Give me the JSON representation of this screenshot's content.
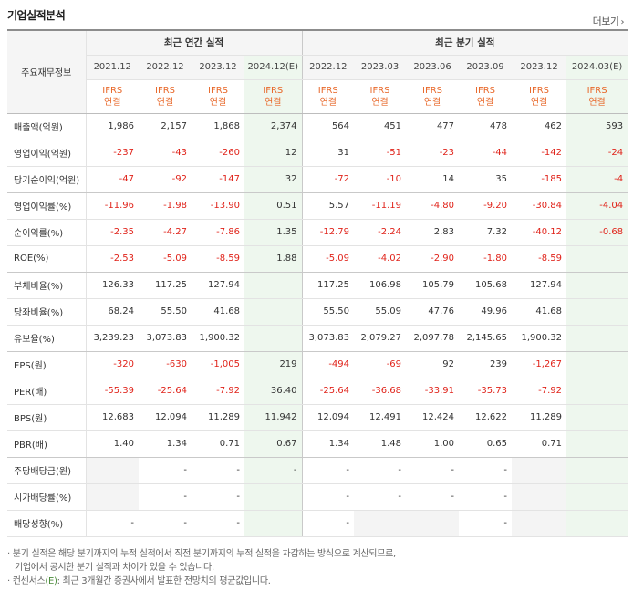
{
  "title": "기업실적분석",
  "more_label": "더보기",
  "header": {
    "label_col": "주요재무정보",
    "annual_group": "최근 연간 실적",
    "quarter_group": "최근 분기 실적",
    "annual_periods": [
      "2021.12",
      "2022.12",
      "2023.12",
      "2024.12(E)"
    ],
    "quarter_periods": [
      "2022.12",
      "2023.03",
      "2023.06",
      "2023.09",
      "2023.12",
      "2024.03(E)"
    ],
    "standard_top": "IFRS",
    "standard_bottom": "연결"
  },
  "rows": [
    {
      "label": "매출액(억원)",
      "values": [
        "1,986",
        "2,157",
        "1,868",
        "2,374",
        "564",
        "451",
        "477",
        "478",
        "462",
        "593"
      ]
    },
    {
      "label": "영업이익(억원)",
      "values": [
        "-237",
        "-43",
        "-260",
        "12",
        "31",
        "-51",
        "-23",
        "-44",
        "-142",
        "-24"
      ]
    },
    {
      "label": "당기순이익(억원)",
      "values": [
        "-47",
        "-92",
        "-147",
        "32",
        "-72",
        "-10",
        "14",
        "35",
        "-185",
        "-4"
      ]
    },
    {
      "label": "영업이익률(%)",
      "values": [
        "-11.96",
        "-1.98",
        "-13.90",
        "0.51",
        "5.57",
        "-11.19",
        "-4.80",
        "-9.20",
        "-30.84",
        "-4.04"
      ]
    },
    {
      "label": "순이익률(%)",
      "values": [
        "-2.35",
        "-4.27",
        "-7.86",
        "1.35",
        "-12.79",
        "-2.24",
        "2.83",
        "7.32",
        "-40.12",
        "-0.68"
      ]
    },
    {
      "label": "ROE(%)",
      "values": [
        "-2.53",
        "-5.09",
        "-8.59",
        "1.88",
        "-5.09",
        "-4.02",
        "-2.90",
        "-1.80",
        "-8.59",
        ""
      ]
    },
    {
      "label": "부채비율(%)",
      "values": [
        "126.33",
        "117.25",
        "127.94",
        "",
        "117.25",
        "106.98",
        "105.79",
        "105.68",
        "127.94",
        ""
      ]
    },
    {
      "label": "당좌비율(%)",
      "values": [
        "68.24",
        "55.50",
        "41.68",
        "",
        "55.50",
        "55.09",
        "47.76",
        "49.96",
        "41.68",
        ""
      ]
    },
    {
      "label": "유보율(%)",
      "values": [
        "3,239.23",
        "3,073.83",
        "1,900.32",
        "",
        "3,073.83",
        "2,079.27",
        "2,097.78",
        "2,145.65",
        "1,900.32",
        ""
      ]
    },
    {
      "label": "EPS(원)",
      "values": [
        "-320",
        "-630",
        "-1,005",
        "219",
        "-494",
        "-69",
        "92",
        "239",
        "-1,267",
        ""
      ]
    },
    {
      "label": "PER(배)",
      "values": [
        "-55.39",
        "-25.64",
        "-7.92",
        "36.40",
        "-25.64",
        "-36.68",
        "-33.91",
        "-35.73",
        "-7.92",
        ""
      ]
    },
    {
      "label": "BPS(원)",
      "values": [
        "12,683",
        "12,094",
        "11,289",
        "11,942",
        "12,094",
        "12,491",
        "12,424",
        "12,622",
        "11,289",
        ""
      ]
    },
    {
      "label": "PBR(배)",
      "values": [
        "1.40",
        "1.34",
        "0.71",
        "0.67",
        "1.34",
        "1.48",
        "1.00",
        "0.65",
        "0.71",
        ""
      ]
    },
    {
      "label": "주당배당금(원)",
      "values": [
        "",
        "-",
        "-",
        "-",
        "-",
        "-",
        "-",
        "-",
        "",
        ""
      ]
    },
    {
      "label": "시가배당률(%)",
      "values": [
        "",
        "-",
        "-",
        "",
        "-",
        "-",
        "-",
        "-",
        "",
        ""
      ]
    },
    {
      "label": "배당성향(%)",
      "values": [
        "-",
        "-",
        "-",
        "",
        "-",
        "",
        "",
        "-",
        "",
        ""
      ]
    }
  ],
  "notes": {
    "line1": "분기 실적은 해당 분기까지의 누적 실적에서 직전 분기까지의 누적 실적을 차감하는 방식으로 계산되므로,",
    "line2": "기업에서 공시한 분기 실적과 차이가 있을 수 있습니다.",
    "line3_prefix": "컨센서스",
    "line3_e": "(E)",
    "line3_suffix": ": 최근 3개월간 증권사에서 발표한 전망치의 평균값입니다."
  },
  "colors": {
    "negative": "#e0231a",
    "standard": "#e8682a",
    "estimate_bg": "#eef7ee",
    "blank_bg": "#f4f4f4"
  }
}
